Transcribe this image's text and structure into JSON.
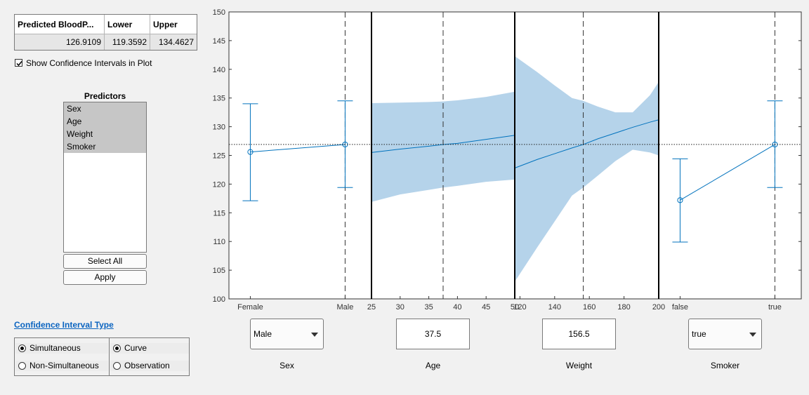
{
  "results_table": {
    "headers": [
      "Predicted BloodP...",
      "Lower",
      "Upper"
    ],
    "values": [
      "126.9109",
      "119.3592",
      "134.4627"
    ]
  },
  "show_ci": {
    "label": "Show Confidence Intervals in Plot",
    "checked": true
  },
  "predictors": {
    "title": "Predictors",
    "items": [
      "Sex",
      "Age",
      "Weight",
      "Smoker"
    ],
    "select_all_label": "Select All",
    "apply_label": "Apply"
  },
  "ci_type": {
    "title": "Confidence Interval Type",
    "group1": [
      {
        "label": "Simultaneous",
        "selected": true
      },
      {
        "label": "Non-Simultaneous",
        "selected": false
      }
    ],
    "group2": [
      {
        "label": "Curve",
        "selected": true
      },
      {
        "label": "Observation",
        "selected": false
      }
    ]
  },
  "controls": [
    {
      "kind": "dropdown",
      "value": "Male",
      "label": "Sex"
    },
    {
      "kind": "edit",
      "value": "37.5",
      "label": "Age"
    },
    {
      "kind": "edit",
      "value": "156.5",
      "label": "Weight"
    },
    {
      "kind": "dropdown",
      "value": "true",
      "label": "Smoker"
    }
  ],
  "colors": {
    "series": "#0072bd",
    "band": "#b5d3ea",
    "link": "#0b64c0"
  },
  "chart_data": {
    "type": "line",
    "ylim": [
      100,
      150
    ],
    "yticks": [
      "100",
      "105",
      "110",
      "115",
      "120",
      "125",
      "130",
      "135",
      "140",
      "145",
      "150"
    ],
    "reference_y": 126.9109,
    "panels": [
      {
        "predictor": "Sex",
        "kind": "categorical",
        "categories": [
          "Female",
          "Male"
        ],
        "fit": [
          125.6,
          126.9
        ],
        "lower": [
          117.1,
          119.4
        ],
        "upper": [
          134.0,
          134.5
        ],
        "current": "Male"
      },
      {
        "predictor": "Age",
        "kind": "continuous",
        "xlim": [
          25,
          50
        ],
        "xticks": [
          "25",
          "30",
          "35",
          "40",
          "45",
          "50"
        ],
        "x": [
          25,
          30,
          35,
          37.5,
          40,
          45,
          50
        ],
        "fit": [
          125.5,
          126.1,
          126.6,
          126.9,
          127.1,
          127.8,
          128.5
        ],
        "lower": [
          116.9,
          118.2,
          119.0,
          119.4,
          119.7,
          120.4,
          120.8
        ],
        "upper": [
          134.1,
          134.2,
          134.3,
          134.4,
          134.6,
          135.2,
          136.1
        ],
        "current": 37.5
      },
      {
        "predictor": "Weight",
        "kind": "continuous",
        "xlim": [
          117,
          200
        ],
        "xticks": [
          "120",
          "140",
          "160",
          "180",
          "200"
        ],
        "x": [
          117,
          130,
          140,
          150,
          156.5,
          165,
          175,
          185,
          195,
          200
        ],
        "fit": [
          122.8,
          124.3,
          125.3,
          126.3,
          126.9,
          127.9,
          128.9,
          129.9,
          130.8,
          131.2
        ],
        "lower": [
          103.0,
          109.0,
          113.5,
          118.0,
          119.4,
          121.5,
          124.0,
          126.0,
          125.5,
          125.0
        ],
        "upper": [
          142.3,
          139.5,
          137.2,
          135.0,
          134.5,
          133.5,
          132.5,
          132.5,
          135.5,
          137.8
        ],
        "current": 156.5
      },
      {
        "predictor": "Smoker",
        "kind": "categorical",
        "categories": [
          "false",
          "true"
        ],
        "fit": [
          117.2,
          126.9
        ],
        "lower": [
          109.9,
          119.4
        ],
        "upper": [
          124.4,
          134.5
        ],
        "current": "true"
      }
    ]
  }
}
